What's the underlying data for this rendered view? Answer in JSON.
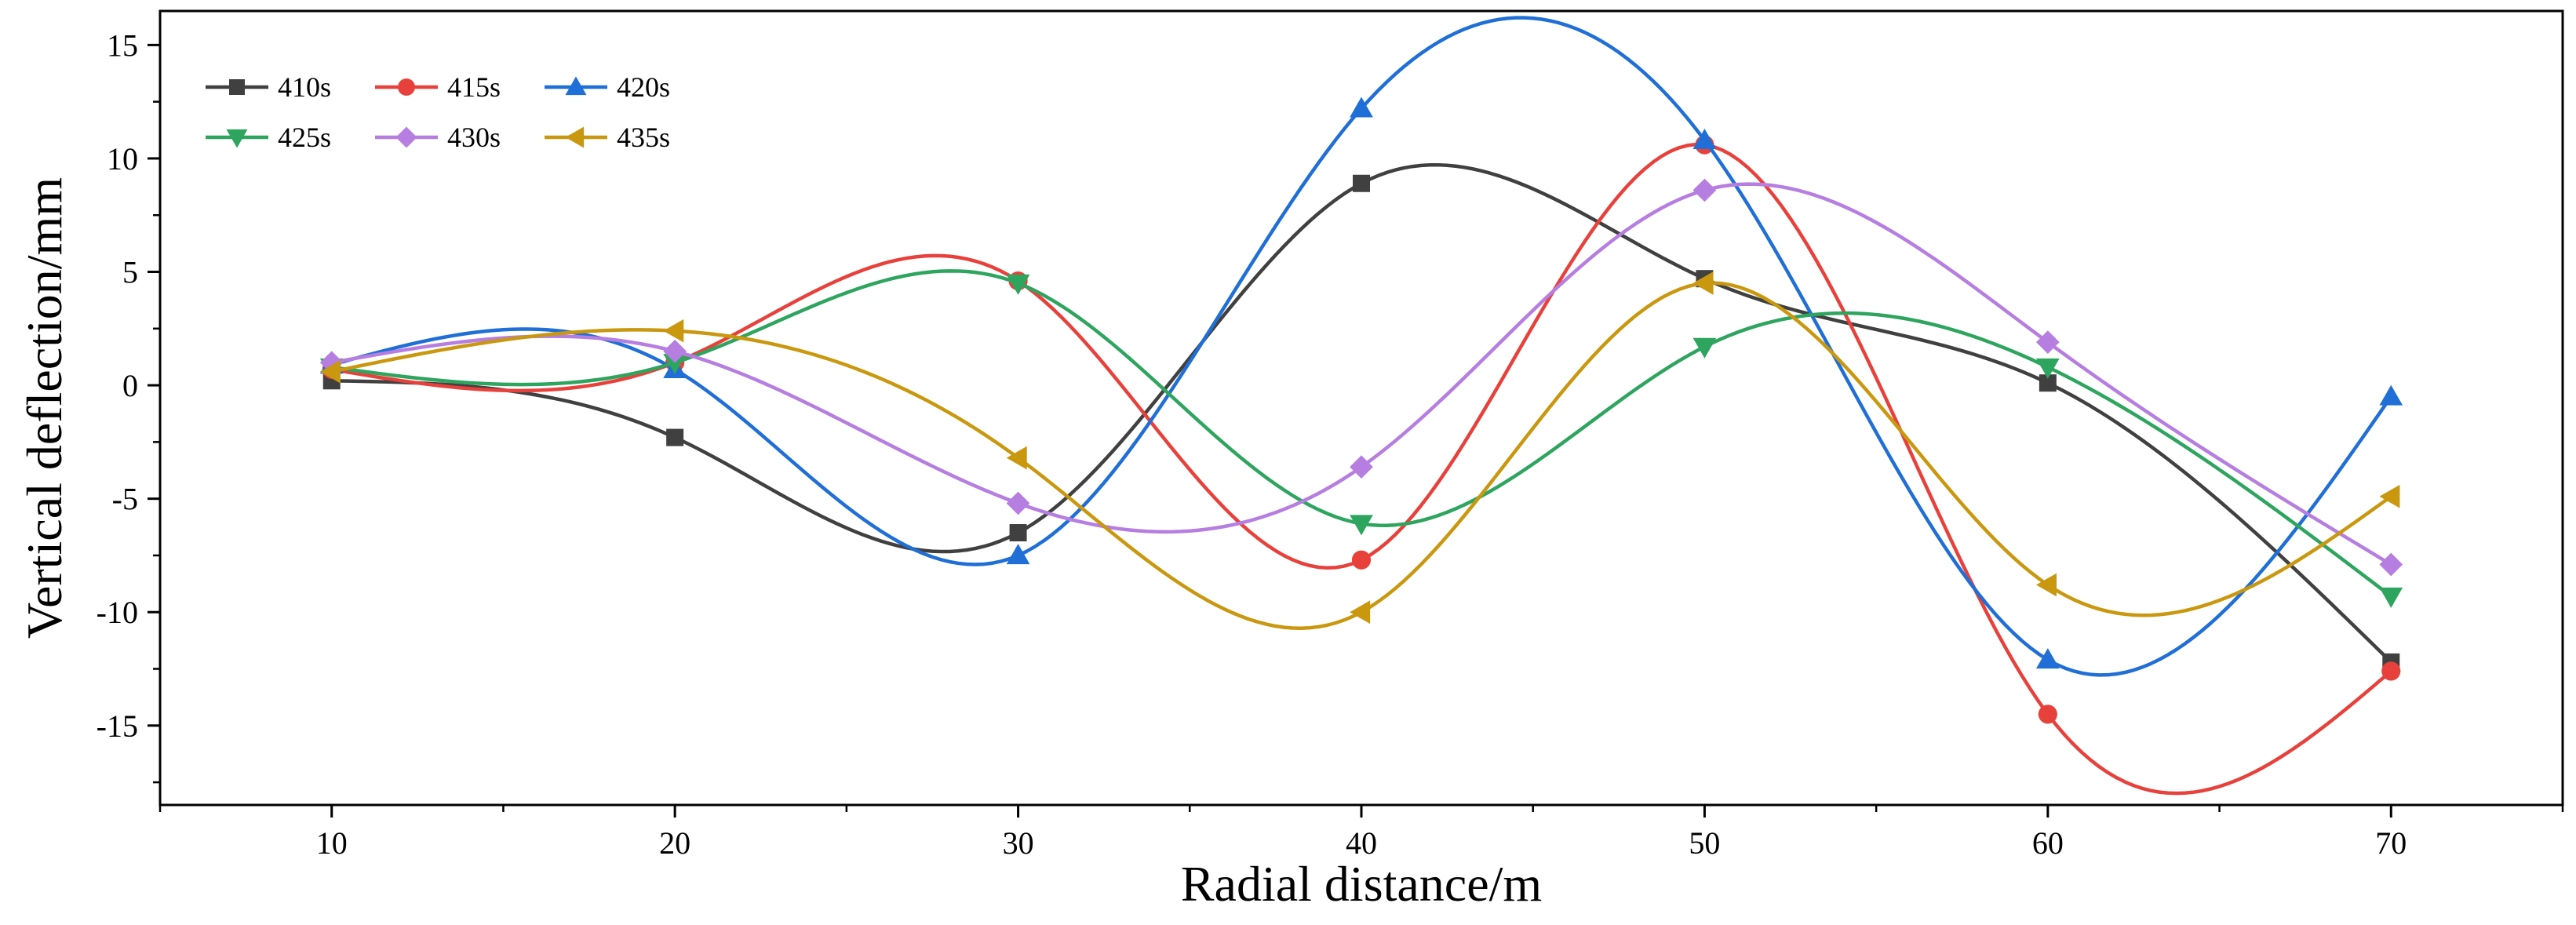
{
  "chart_data": {
    "type": "line",
    "title": "",
    "xlabel": "Radial distance/m",
    "ylabel": "Vertical deflection/mm",
    "xlim": [
      5,
      75
    ],
    "ylim": [
      -18.5,
      16.5
    ],
    "xticks": [
      10,
      20,
      30,
      40,
      50,
      60,
      70
    ],
    "xtick_labels": [
      "10",
      "20",
      "30",
      "40",
      "50",
      "60",
      "70"
    ],
    "yticks": [
      15,
      10,
      5,
      0,
      -5,
      -10,
      -15
    ],
    "ytick_labels": [
      "15",
      "10",
      "5",
      "0",
      "-5",
      "-10",
      "-15"
    ],
    "grid": false,
    "legend_position": "top-left",
    "smooth": true,
    "x": [
      10,
      20,
      30,
      40,
      50,
      60,
      70
    ],
    "series": [
      {
        "name": "410s",
        "color": "#404040",
        "marker": "square",
        "values": [
          0.2,
          -2.3,
          -6.5,
          8.9,
          4.7,
          0.1,
          -12.2
        ]
      },
      {
        "name": "415s",
        "color": "#e8413c",
        "marker": "circle",
        "values": [
          0.7,
          1.0,
          4.6,
          -7.7,
          10.6,
          -14.5,
          -12.6
        ]
      },
      {
        "name": "420s",
        "color": "#1f6fd6",
        "marker": "triangle-up",
        "values": [
          0.9,
          0.7,
          -7.5,
          12.2,
          10.8,
          -12.1,
          -0.5
        ]
      },
      {
        "name": "425s",
        "color": "#2ea55f",
        "marker": "triangle-down",
        "values": [
          0.8,
          1.0,
          4.5,
          -6.1,
          1.7,
          0.8,
          -9.3
        ]
      },
      {
        "name": "430s",
        "color": "#b57ee0",
        "marker": "diamond",
        "values": [
          1.0,
          1.5,
          -5.2,
          -3.6,
          8.6,
          1.9,
          -7.9
        ]
      },
      {
        "name": "435s",
        "color": "#c9980f",
        "marker": "triangle-left",
        "values": [
          0.6,
          2.4,
          -3.2,
          -10.0,
          4.5,
          -8.8,
          -4.9
        ]
      }
    ]
  }
}
